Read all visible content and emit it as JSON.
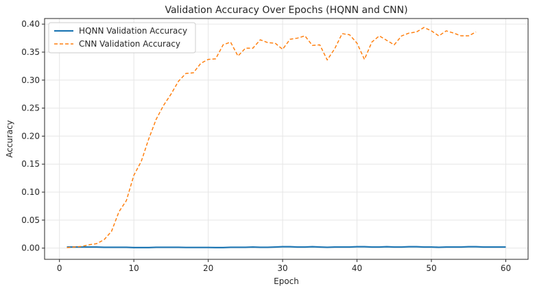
{
  "chart_data": {
    "type": "line",
    "title": "Validation Accuracy Over Epochs (HQNN and CNN)",
    "xlabel": "Epoch",
    "ylabel": "Accuracy",
    "xlim": [
      -2.0,
      63.0
    ],
    "ylim": [
      -0.02,
      0.41
    ],
    "xticks": [
      0,
      10,
      20,
      30,
      40,
      50,
      60
    ],
    "yticks": [
      0.0,
      0.05,
      0.1,
      0.15,
      0.2,
      0.25,
      0.3,
      0.35,
      0.4
    ],
    "ytick_labels": [
      "0.00",
      "0.05",
      "0.10",
      "0.15",
      "0.20",
      "0.25",
      "0.30",
      "0.35",
      "0.40"
    ],
    "grid": true,
    "legend_position": "top-left",
    "series": [
      {
        "name": "HQNN Validation Accuracy",
        "color": "#1f77b4",
        "style": "solid",
        "x": [
          1,
          2,
          3,
          4,
          5,
          6,
          7,
          8,
          9,
          10,
          11,
          12,
          13,
          14,
          15,
          16,
          17,
          18,
          19,
          20,
          21,
          22,
          23,
          24,
          25,
          26,
          27,
          28,
          29,
          30,
          31,
          32,
          33,
          34,
          35,
          36,
          37,
          38,
          39,
          40,
          41,
          42,
          43,
          44,
          45,
          46,
          47,
          48,
          49,
          50,
          51,
          52,
          53,
          54,
          55,
          56,
          57,
          58,
          59,
          60
        ],
        "values": [
          0.002,
          0.002,
          0.002,
          0.002,
          0.002,
          0.0015,
          0.0015,
          0.0015,
          0.0015,
          0.001,
          0.001,
          0.001,
          0.0015,
          0.0015,
          0.0015,
          0.0015,
          0.0012,
          0.0012,
          0.0012,
          0.0012,
          0.001,
          0.001,
          0.0015,
          0.0015,
          0.0015,
          0.002,
          0.0015,
          0.0015,
          0.002,
          0.0025,
          0.0025,
          0.002,
          0.002,
          0.0025,
          0.002,
          0.0015,
          0.002,
          0.002,
          0.002,
          0.0025,
          0.0025,
          0.002,
          0.002,
          0.0025,
          0.002,
          0.002,
          0.0025,
          0.0025,
          0.002,
          0.002,
          0.0015,
          0.002,
          0.002,
          0.002,
          0.0025,
          0.0025,
          0.002,
          0.002,
          0.002,
          0.002
        ]
      },
      {
        "name": "CNN Validation Accuracy",
        "color": "#ff7f0e",
        "style": "dashed",
        "x": [
          1,
          2,
          3,
          4,
          5,
          6,
          7,
          8,
          9,
          10,
          11,
          12,
          13,
          14,
          15,
          16,
          17,
          18,
          19,
          20,
          21,
          22,
          23,
          24,
          25,
          26,
          27,
          28,
          29,
          30,
          31,
          32,
          33,
          34,
          35,
          36,
          37,
          38,
          39,
          40,
          41,
          42,
          43,
          44,
          45,
          46,
          47,
          48,
          49,
          50,
          51,
          52,
          53,
          54,
          55,
          56
        ],
        "values": [
          0.001,
          0.002,
          0.003,
          0.006,
          0.008,
          0.015,
          0.03,
          0.065,
          0.085,
          0.13,
          0.155,
          0.195,
          0.23,
          0.255,
          0.275,
          0.298,
          0.312,
          0.313,
          0.33,
          0.337,
          0.338,
          0.363,
          0.368,
          0.343,
          0.357,
          0.357,
          0.372,
          0.367,
          0.366,
          0.355,
          0.373,
          0.375,
          0.379,
          0.362,
          0.363,
          0.336,
          0.356,
          0.383,
          0.381,
          0.366,
          0.337,
          0.368,
          0.379,
          0.371,
          0.363,
          0.379,
          0.384,
          0.386,
          0.394,
          0.388,
          0.379,
          0.388,
          0.384,
          0.379,
          0.379,
          0.386
        ]
      }
    ]
  }
}
